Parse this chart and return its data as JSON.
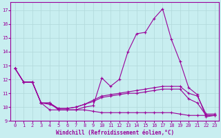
{
  "xlabel": "Windchill (Refroidissement éolien,°C)",
  "background_color": "#c8eef0",
  "grid_color": "#b0d8da",
  "line_color": "#990099",
  "xlim": [
    -0.5,
    23.5
  ],
  "ylim": [
    9.0,
    17.6
  ],
  "yticks": [
    9,
    10,
    11,
    12,
    13,
    14,
    15,
    16,
    17
  ],
  "xticks": [
    0,
    1,
    2,
    3,
    4,
    5,
    6,
    7,
    8,
    9,
    10,
    11,
    12,
    13,
    14,
    15,
    16,
    17,
    18,
    19,
    20,
    21,
    22,
    23
  ],
  "series1_x": [
    0,
    1,
    2,
    3,
    4,
    5,
    6,
    7,
    8,
    9,
    10,
    11,
    12,
    13,
    14,
    15,
    16,
    17,
    18,
    19,
    20,
    21,
    22,
    23
  ],
  "series1_y": [
    12.8,
    11.8,
    11.8,
    10.3,
    10.3,
    9.8,
    9.8,
    9.8,
    10.0,
    10.1,
    12.1,
    11.5,
    12.0,
    14.0,
    15.3,
    15.4,
    16.4,
    17.1,
    14.9,
    13.3,
    11.4,
    10.9,
    9.3,
    9.4
  ],
  "series2_x": [
    0,
    1,
    2,
    3,
    4,
    5,
    6,
    7,
    8,
    9,
    10,
    11,
    12,
    13,
    14,
    15,
    16,
    17,
    18,
    19,
    20,
    21,
    22,
    23
  ],
  "series2_y": [
    12.8,
    11.8,
    11.8,
    10.3,
    10.3,
    9.9,
    9.9,
    10.0,
    10.2,
    10.5,
    10.8,
    10.9,
    11.0,
    11.1,
    11.2,
    11.3,
    11.4,
    11.5,
    11.5,
    11.5,
    11.0,
    10.8,
    9.5,
    9.5
  ],
  "series3_x": [
    0,
    1,
    2,
    3,
    4,
    5,
    6,
    7,
    8,
    9,
    10,
    11,
    12,
    13,
    14,
    15,
    16,
    17,
    18,
    19,
    20,
    21,
    22,
    23
  ],
  "series3_y": [
    12.8,
    11.8,
    11.8,
    10.3,
    10.2,
    9.9,
    9.9,
    10.0,
    10.2,
    10.4,
    10.7,
    10.8,
    10.9,
    11.0,
    11.0,
    11.1,
    11.2,
    11.3,
    11.3,
    11.3,
    10.6,
    10.3,
    9.4,
    9.4
  ],
  "series4_x": [
    0,
    1,
    2,
    3,
    4,
    5,
    6,
    7,
    8,
    9,
    10,
    11,
    12,
    13,
    14,
    15,
    16,
    17,
    18,
    19,
    20,
    21,
    22,
    23
  ],
  "series4_y": [
    12.8,
    11.8,
    11.8,
    10.3,
    9.8,
    9.8,
    9.8,
    9.8,
    9.8,
    9.7,
    9.6,
    9.6,
    9.6,
    9.6,
    9.6,
    9.6,
    9.6,
    9.6,
    9.6,
    9.5,
    9.4,
    9.4,
    9.4,
    9.4
  ]
}
